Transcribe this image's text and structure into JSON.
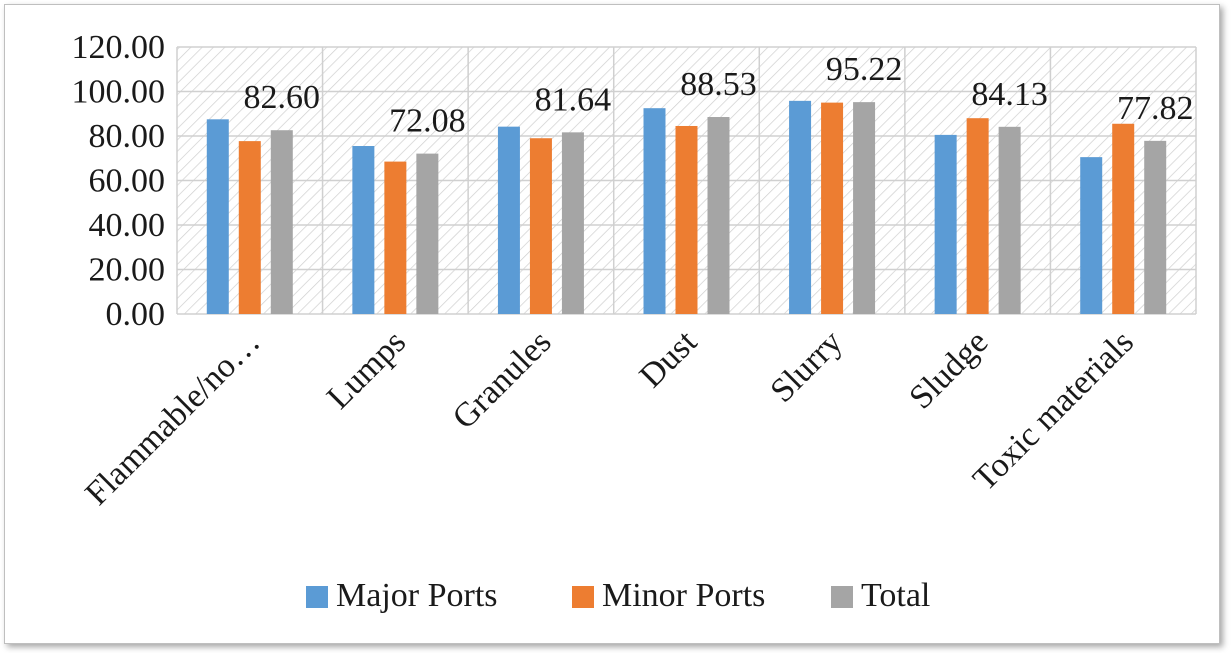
{
  "chart_data": {
    "type": "bar",
    "categories": [
      "Flammable/no…",
      "Lumps",
      "Granules",
      "Dust",
      "Slurry",
      "Sludge",
      "Toxic materials"
    ],
    "series": [
      {
        "name": "Major Ports",
        "color": "#5b9bd5",
        "values": [
          87.5,
          75.5,
          84.2,
          92.5,
          95.8,
          80.5,
          70.5
        ]
      },
      {
        "name": "Minor Ports",
        "color": "#ed7d31",
        "values": [
          77.7,
          68.5,
          79.0,
          84.5,
          95.0,
          88.0,
          85.5
        ]
      },
      {
        "name": "Total",
        "color": "#a5a5a5",
        "values": [
          82.6,
          72.08,
          81.64,
          88.53,
          95.22,
          84.13,
          77.82
        ]
      }
    ],
    "data_labels": [
      "82.60",
      "72.08",
      "81.64",
      "88.53",
      "95.22",
      "84.13",
      "77.82"
    ],
    "y_ticks": [
      "0.00",
      "20.00",
      "40.00",
      "60.00",
      "80.00",
      "100.00",
      "120.00"
    ],
    "ylim": [
      0,
      120
    ],
    "grid": true,
    "legend_position": "bottom"
  }
}
